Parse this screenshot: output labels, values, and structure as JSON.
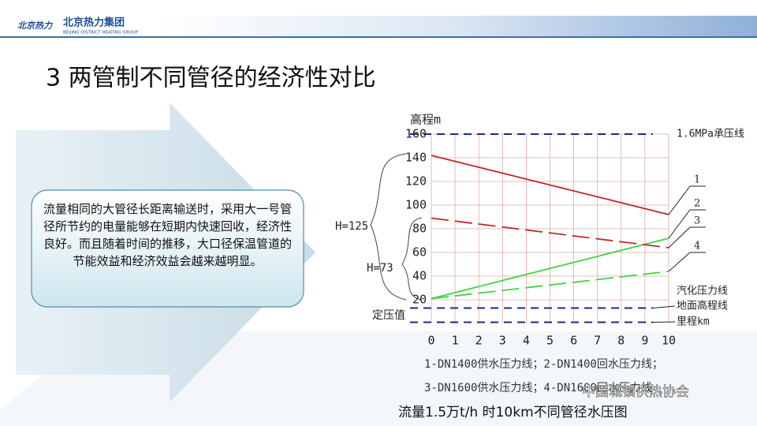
{
  "slide": {
    "logo_name": "北京热力集团",
    "logo_sub": "BEIJING DISTRICT HEATING GROUP",
    "logo_mark": "北京热力",
    "title": "3 两管制不同管径的经济性对比",
    "callout": "流量相同的大管径长距离输送时，采用大一号管径所节约的电量能够在短期内快速回收，经济性良好。而且随着时间的推移，大口径保温管道的节能效益和经济效益会越来越明显。",
    "caption": "流量1.5万t/h 时10km不同管径水压图",
    "watermark": "中国城镇供热协会"
  },
  "chart_data": {
    "type": "line",
    "y_label": "高程m",
    "x": [
      0,
      1,
      2,
      3,
      4,
      5,
      6,
      7,
      8,
      9,
      10
    ],
    "xlim": [
      0,
      10
    ],
    "xticks": [
      0,
      1,
      2,
      3,
      4,
      5,
      6,
      7,
      8,
      9,
      10
    ],
    "ylim": [
      0,
      160
    ],
    "yticks": [
      20,
      40,
      60,
      80,
      100,
      120,
      140,
      160
    ],
    "grid": true,
    "series": [
      {
        "name": "1",
        "color": "#c0272d",
        "dash": false,
        "values": [
          142,
          137,
          132,
          127,
          122,
          117,
          112,
          107,
          102,
          97,
          92
        ]
      },
      {
        "name": "2",
        "color": "#3fd43f",
        "dash": false,
        "values": [
          21,
          26.1,
          31.2,
          36.3,
          41.4,
          46.5,
          51.6,
          56.7,
          61.8,
          66.9,
          72
        ]
      },
      {
        "name": "3",
        "color": "#c0272d",
        "dash": true,
        "values": [
          89,
          86.5,
          84,
          81.5,
          79,
          76.5,
          74,
          71.5,
          69,
          66.5,
          64
        ]
      },
      {
        "name": "4",
        "color": "#3fd43f",
        "dash": true,
        "values": [
          21,
          23.3,
          25.6,
          27.9,
          30.2,
          32.5,
          34.8,
          37.1,
          39.4,
          41.7,
          44
        ]
      }
    ],
    "reference_lines": [
      {
        "value": 160,
        "label": "1.6MPa承压线"
      },
      {
        "value": 13,
        "label": "地面高程线"
      },
      {
        "value": 1,
        "label": "里程km"
      }
    ],
    "annotations": [
      "汽化压力线",
      "H=125",
      "H=73",
      "定压值"
    ],
    "legend_notes": [
      "1-DN1400供水压力线；2-DN1400回水压力线；",
      "3-DN1600供水压力线；4-DN1600回水压力线"
    ]
  }
}
